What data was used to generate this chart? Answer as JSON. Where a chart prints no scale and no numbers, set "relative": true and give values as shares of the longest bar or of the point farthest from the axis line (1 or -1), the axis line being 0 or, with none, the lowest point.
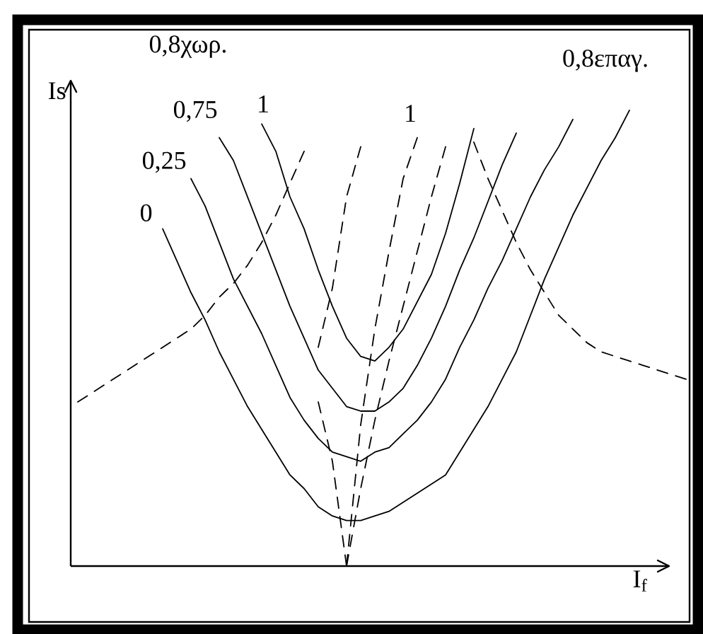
{
  "chart_data": {
    "type": "line",
    "relative": true,
    "xlabel": "I$_{f}$",
    "ylabel": "Is",
    "annotations": [
      "0,8χωρ.",
      "0,8επαγ."
    ],
    "categories": [
      null,
      null,
      null,
      null,
      null,
      null,
      null,
      null,
      null,
      null,
      null,
      null,
      null,
      null,
      null,
      null,
      null,
      null,
      null,
      null,
      null,
      null,
      null,
      null,
      null,
      null,
      null,
      null,
      null,
      null,
      null,
      null,
      null,
      null,
      null,
      null,
      null,
      null,
      null,
      null,
      null,
      null,
      null,
      null
    ],
    "series": [
      {
        "name": "0",
        "color": "#000000",
        "line_style": "solid",
        "values": [
          null,
          null,
          null,
          null,
          null,
          null,
          0.74,
          0.67,
          0.6,
          0.54,
          0.47,
          0.41,
          0.35,
          0.3,
          0.25,
          0.2,
          0.17,
          0.13,
          0.11,
          0.1,
          0.1,
          0.11,
          0.12,
          0.14,
          0.16,
          0.18,
          0.2,
          0.25,
          0.3,
          0.35,
          0.41,
          0.47,
          0.55,
          0.63,
          0.7,
          0.77,
          0.83,
          0.89,
          0.94,
          1.0,
          null,
          null,
          null,
          null
        ]
      },
      {
        "name": "0,25",
        "color": "#000000",
        "line_style": "solid",
        "values": [
          null,
          null,
          null,
          null,
          null,
          null,
          null,
          null,
          0.85,
          0.79,
          0.71,
          0.63,
          0.57,
          0.51,
          0.44,
          0.37,
          0.32,
          0.28,
          0.25,
          0.24,
          0.23,
          0.25,
          0.26,
          0.29,
          0.32,
          0.36,
          0.41,
          0.48,
          0.54,
          0.61,
          0.67,
          0.74,
          0.81,
          0.87,
          0.92,
          0.98,
          null,
          null,
          null,
          null,
          null,
          null,
          null,
          null
        ]
      },
      {
        "name": "0,75",
        "color": "#000000",
        "line_style": "solid",
        "values": [
          null,
          null,
          null,
          null,
          null,
          null,
          null,
          null,
          null,
          null,
          0.94,
          0.89,
          0.81,
          0.73,
          0.65,
          0.57,
          0.5,
          0.43,
          0.39,
          0.35,
          0.34,
          0.34,
          0.36,
          0.39,
          0.44,
          0.5,
          0.57,
          0.65,
          0.72,
          0.8,
          0.88,
          0.95,
          null,
          null,
          null,
          null,
          null,
          null,
          null,
          null,
          null,
          null,
          null,
          null
        ]
      },
      {
        "name": "1",
        "color": "#000000",
        "line_style": "solid",
        "values": [
          null,
          null,
          null,
          null,
          null,
          null,
          null,
          null,
          null,
          null,
          null,
          null,
          null,
          0.97,
          0.91,
          0.81,
          0.74,
          0.65,
          0.57,
          0.5,
          0.46,
          0.45,
          0.48,
          0.52,
          0.58,
          0.64,
          0.73,
          0.84,
          0.96,
          null,
          null,
          null,
          null,
          null,
          null,
          null,
          null,
          null,
          null,
          null,
          null,
          null,
          null,
          null
        ]
      },
      {
        "color": "#000000",
        "line_style": "dashed",
        "values": [
          null,
          null,
          null,
          null,
          null,
          null,
          null,
          null,
          null,
          null,
          null,
          null,
          null,
          null,
          null,
          null,
          null,
          0.48,
          0.61,
          0.81,
          0.92,
          null,
          null,
          null,
          null,
          null,
          null,
          null,
          null,
          null,
          null,
          null,
          null,
          null,
          null,
          null,
          null,
          null,
          null,
          null,
          null,
          null,
          null,
          null
        ]
      },
      {
        "color": "#000000",
        "line_style": "dashed",
        "values": [
          null,
          null,
          null,
          null,
          null,
          null,
          null,
          null,
          null,
          null,
          null,
          null,
          null,
          null,
          null,
          null,
          null,
          0.36,
          0.23,
          0.0,
          null,
          null,
          null,
          null,
          null,
          null,
          null,
          null,
          null,
          null,
          null,
          null,
          null,
          null,
          null,
          null,
          null,
          null,
          null,
          null,
          null,
          null,
          null,
          null
        ]
      },
      {
        "name": "1",
        "color": "#000000",
        "line_style": "dashed",
        "values": [
          null,
          null,
          null,
          null,
          null,
          null,
          null,
          null,
          null,
          null,
          null,
          null,
          null,
          null,
          null,
          null,
          null,
          null,
          null,
          0.0,
          0.31,
          0.52,
          0.69,
          0.85,
          0.94,
          null,
          null,
          null,
          null,
          null,
          null,
          null,
          null,
          null,
          null,
          null,
          null,
          null,
          null,
          null,
          null,
          null,
          null,
          null
        ]
      },
      {
        "color": "#000000",
        "line_style": "dashed",
        "values": [
          null,
          null,
          null,
          null,
          null,
          null,
          null,
          null,
          null,
          null,
          null,
          null,
          null,
          null,
          null,
          null,
          null,
          null,
          null,
          0.0,
          0.17,
          0.32,
          0.45,
          0.57,
          0.69,
          0.81,
          0.92,
          null,
          null,
          null,
          null,
          null,
          null,
          null,
          null,
          null,
          null,
          null,
          null,
          null,
          null,
          null,
          null,
          null
        ]
      },
      {
        "color": "#000000",
        "line_style": "dashed",
        "values": [
          0.36,
          0.38,
          0.4,
          0.42,
          0.44,
          0.46,
          0.48,
          0.5,
          0.52,
          0.55,
          0.59,
          0.62,
          0.66,
          0.71,
          0.77,
          0.84,
          0.91,
          null,
          null,
          null,
          null,
          null,
          null,
          null,
          null,
          null,
          null,
          null,
          null,
          null,
          null,
          null,
          null,
          null,
          null,
          null,
          null,
          null,
          null,
          null,
          null,
          null,
          null,
          null
        ]
      },
      {
        "color": "#000000",
        "line_style": "dashed",
        "values": [
          null,
          null,
          null,
          null,
          null,
          null,
          null,
          null,
          null,
          null,
          null,
          null,
          null,
          null,
          null,
          null,
          null,
          null,
          null,
          null,
          null,
          null,
          null,
          null,
          null,
          null,
          null,
          null,
          0.93,
          0.85,
          0.78,
          0.71,
          0.65,
          0.6,
          0.55,
          0.52,
          0.49,
          0.47,
          0.46,
          0.45,
          0.44,
          0.43,
          0.42,
          0.41
        ]
      }
    ]
  }
}
